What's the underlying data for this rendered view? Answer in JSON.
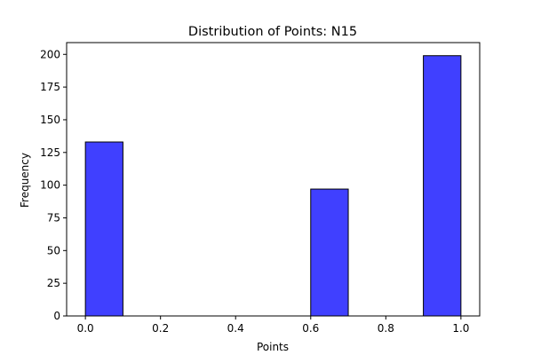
{
  "chart_data": {
    "type": "bar",
    "title": "Distribution of Points: N15",
    "xlabel": "Points",
    "ylabel": "Frequency",
    "xlim": [
      -0.05,
      1.05
    ],
    "ylim": [
      0,
      209
    ],
    "xticks": [
      0.0,
      0.2,
      0.4,
      0.6,
      0.8,
      1.0
    ],
    "xtick_labels": [
      "0.0",
      "0.2",
      "0.4",
      "0.6",
      "0.8",
      "1.0"
    ],
    "yticks": [
      0,
      25,
      50,
      75,
      100,
      125,
      150,
      175,
      200
    ],
    "ytick_labels": [
      "0",
      "25",
      "50",
      "75",
      "100",
      "125",
      "150",
      "175",
      "200"
    ],
    "bins": [
      {
        "x0": 0.0,
        "x1": 0.1,
        "value": 133
      },
      {
        "x0": 0.6,
        "x1": 0.7,
        "value": 97
      },
      {
        "x0": 0.9,
        "x1": 1.0,
        "value": 199
      }
    ],
    "bar_color": "#4040ff",
    "edge_color": "#000000",
    "grid": false,
    "legend": "none"
  }
}
